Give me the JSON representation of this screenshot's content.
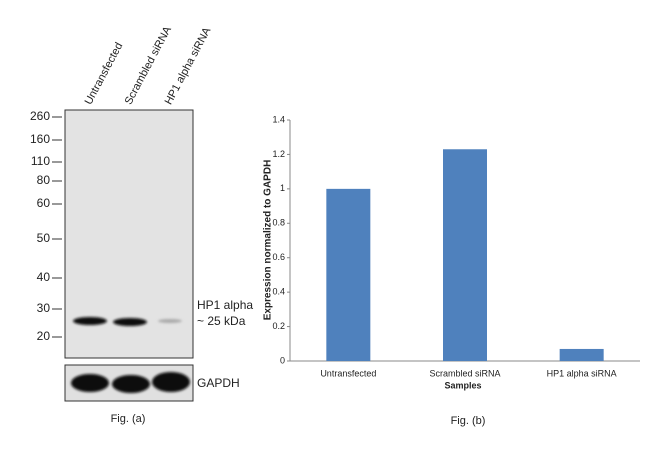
{
  "blot": {
    "lanes": [
      "Untransfected",
      "Scrambled siRNA",
      "HP1 alpha siRNA"
    ],
    "markers": [
      "260",
      "160",
      "110",
      "80",
      "60",
      "50",
      "40",
      "30",
      "20"
    ],
    "band_label": "HP1 alpha",
    "band_size": "~ 25 kDa",
    "control_label": "GAPDH",
    "caption": "Fig. (a)"
  },
  "chart_data": {
    "type": "bar",
    "ylabel": "Expression  normalized to GAPDH",
    "xlabel": "Samples",
    "caption": "Fig. (b)",
    "categories": [
      "Untransfected",
      "Scrambled siRNA",
      "HP1 alpha siRNA"
    ],
    "values": [
      1.0,
      1.23,
      0.07
    ],
    "color": "#4f81bd",
    "ylim": [
      0,
      1.4
    ],
    "yticks": [
      0,
      0.2,
      0.4,
      0.6,
      0.8,
      1,
      1.2,
      1.4
    ]
  }
}
